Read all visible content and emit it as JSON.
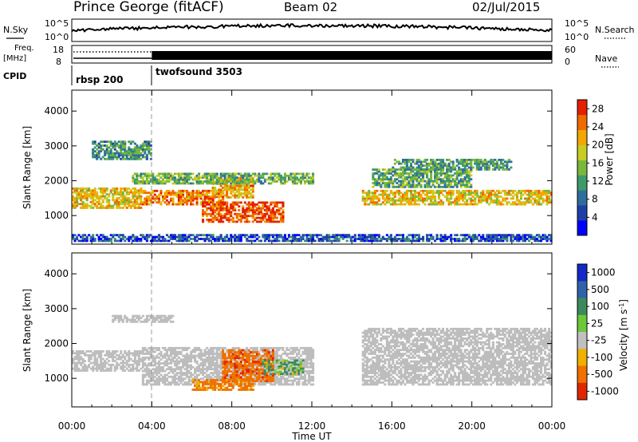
{
  "header": {
    "station": "Prince George (fitACF)",
    "beam": "Beam 02",
    "date": "02/Jul/2015"
  },
  "labels": {
    "nsky": "N.Sky",
    "nsearch": "N.Search",
    "freq_line1": "Freq.",
    "freq_line2": "[MHz]",
    "nave": "Nave",
    "cpid": "CPID",
    "nsky_top": "10^5",
    "nsky_bottom": "10^0",
    "freq_top": "18",
    "freq_bottom": "8",
    "nave_top": "60",
    "nave_bottom": "0"
  },
  "cpid": [
    {
      "name": "rbsp 200",
      "start_hour": 0
    },
    {
      "name": "twofsound 3503",
      "start_hour": 4
    }
  ],
  "colors": {
    "power_scale": [
      "#0000ff",
      "#1f3fa8",
      "#2e6e9e",
      "#3f9a6a",
      "#7ab83a",
      "#c8cc22",
      "#f2a800",
      "#f06a00",
      "#e42000"
    ],
    "velocity_scale": [
      "#1428c8",
      "#2f62a8",
      "#3c8a5c",
      "#6cc838",
      "#c0c0c0",
      "#f0b000",
      "#f07000",
      "#e02800"
    ],
    "ground_scatter": "#bdbdbd"
  },
  "chart_data": [
    {
      "type": "heatmap",
      "title": "Power",
      "xlabel": "Time UT",
      "ylabel": "Slant Range [km]",
      "xlim": [
        0,
        24
      ],
      "ylim": [
        180,
        4600
      ],
      "x_ticks": [
        "00:00",
        "04:00",
        "08:00",
        "12:00",
        "16:00",
        "20:00",
        "00:00"
      ],
      "y_ticks": [
        "1000",
        "2000",
        "3000",
        "4000"
      ],
      "colorbar_label": "Power [dB]",
      "colorbar_ticks": [
        "4",
        "8",
        "12",
        "16",
        "20",
        "24",
        "28"
      ],
      "colorbar_range": [
        0,
        30
      ],
      "regions": [
        {
          "t0": 0,
          "t1": 3.5,
          "r0": 1200,
          "r1": 1800,
          "level": 20
        },
        {
          "t0": 3.5,
          "t1": 7.5,
          "r0": 1300,
          "r1": 1700,
          "level": 24
        },
        {
          "t0": 6.5,
          "t1": 10.5,
          "r0": 800,
          "r1": 1400,
          "level": 27
        },
        {
          "t0": 7,
          "t1": 9,
          "r0": 1500,
          "r1": 2100,
          "level": 22
        },
        {
          "t0": 3,
          "t1": 12,
          "r0": 1900,
          "r1": 2200,
          "level": 14
        },
        {
          "t0": 14.5,
          "t1": 24,
          "r0": 1300,
          "r1": 1700,
          "level": 20
        },
        {
          "t0": 15,
          "t1": 20,
          "r0": 1800,
          "r1": 2300,
          "level": 13
        },
        {
          "t0": 1,
          "t1": 4,
          "r0": 2600,
          "r1": 3100,
          "level": 11
        },
        {
          "t0": 16,
          "t1": 22,
          "r0": 2300,
          "r1": 2600,
          "level": 12
        },
        {
          "t0": 0,
          "t1": 24,
          "r0": 250,
          "r1": 450,
          "level": 6
        }
      ]
    },
    {
      "type": "heatmap",
      "title": "Velocity",
      "xlabel": "Time UT",
      "ylabel": "Slant Range [km]",
      "xlim": [
        0,
        24
      ],
      "ylim": [
        180,
        4600
      ],
      "x_ticks": [
        "00:00",
        "04:00",
        "08:00",
        "12:00",
        "16:00",
        "20:00",
        "00:00"
      ],
      "y_ticks": [
        "1000",
        "2000",
        "3000",
        "4000"
      ],
      "colorbar_label": "Velocity [m s^-1]",
      "colorbar_ticks": [
        "1000",
        "500",
        "100",
        "25",
        "-25",
        "-100",
        "-500",
        "-1000"
      ],
      "regions": [
        {
          "t0": 0,
          "t1": 3.5,
          "r0": 1200,
          "r1": 1800,
          "class": "ground"
        },
        {
          "t0": 3.5,
          "t1": 12,
          "r0": 800,
          "r1": 1900,
          "class": "ground"
        },
        {
          "t0": 14.5,
          "t1": 24,
          "r0": 800,
          "r1": 2400,
          "class": "ground"
        },
        {
          "t0": 7.5,
          "t1": 10,
          "r0": 900,
          "r1": 1800,
          "velocity": -400
        },
        {
          "t0": 6,
          "t1": 9,
          "r0": 650,
          "r1": 950,
          "velocity": -200
        },
        {
          "t0": 9.5,
          "t1": 11.5,
          "r0": 1100,
          "r1": 1500,
          "velocity": 100
        },
        {
          "t0": 2,
          "t1": 5,
          "r0": 2600,
          "r1": 2800,
          "class": "ground"
        }
      ]
    }
  ]
}
